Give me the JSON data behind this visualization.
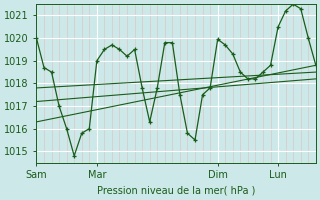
{
  "xlabel": "Pression niveau de la mer( hPa )",
  "bg_color": "#cce8e8",
  "grid_color": "#ffffff",
  "line_color": "#1a5c1a",
  "ylim": [
    1014.5,
    1021.5
  ],
  "yticks": [
    1015,
    1016,
    1017,
    1018,
    1019,
    1020,
    1021
  ],
  "xlim": [
    0,
    37
  ],
  "day_positions": [
    0,
    8,
    24,
    32
  ],
  "day_labels": [
    "Sam",
    "Mar",
    "Dim",
    "Lun"
  ],
  "series1_x": [
    0,
    1,
    2,
    3,
    4,
    5,
    6,
    7,
    8,
    9,
    10,
    11,
    12,
    13,
    14,
    15,
    16,
    17,
    18,
    19,
    20,
    21,
    22,
    23,
    24,
    25,
    26,
    27,
    28,
    29,
    30,
    31,
    32,
    33,
    34,
    35,
    36,
    37
  ],
  "series1_y": [
    1020.0,
    1018.7,
    1018.5,
    1017.0,
    1016.0,
    1014.8,
    1015.8,
    1016.0,
    1019.0,
    1019.5,
    1019.7,
    1019.5,
    1019.2,
    1019.5,
    1017.8,
    1016.3,
    1017.8,
    1019.8,
    1019.8,
    1017.5,
    1015.8,
    1015.5,
    1017.5,
    1017.8,
    1019.95,
    1019.7,
    1019.3,
    1018.5,
    1018.2,
    1018.2,
    1018.5,
    1018.8,
    1020.5,
    1021.2,
    1021.5,
    1021.3,
    1020.0,
    1018.8
  ],
  "trend1_x": [
    0,
    37
  ],
  "trend1_y": [
    1017.8,
    1018.5
  ],
  "trend2_x": [
    0,
    37
  ],
  "trend2_y": [
    1016.3,
    1018.8
  ],
  "trend3_x": [
    0,
    37
  ],
  "trend3_y": [
    1017.2,
    1018.2
  ],
  "tick_color": "#1a5c1a",
  "label_color": "#1a5c1a",
  "axis_color": "#1a5c1a",
  "minor_grid_color": "#e8b0b0",
  "minor_grid_alpha": 0.6
}
